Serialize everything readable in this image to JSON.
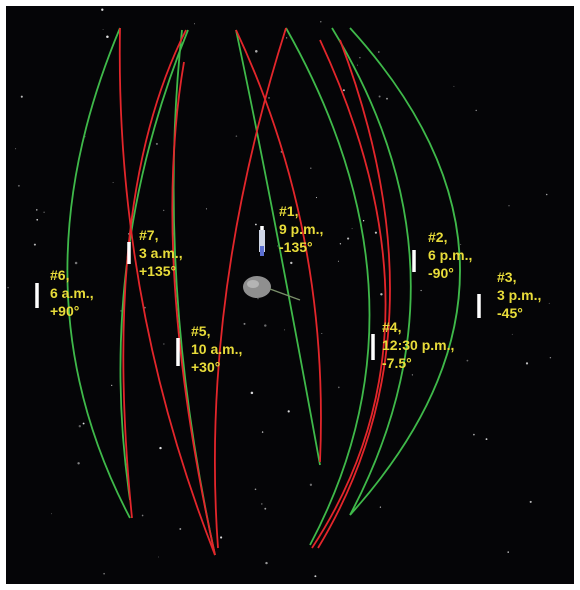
{
  "colors": {
    "background": "#050507",
    "orbit_green": "#3fb94a",
    "orbit_red": "#e3262b",
    "label": "#e8dc3a",
    "marker": "#ffffff",
    "asteroid": "#8f8f8f"
  },
  "icons": [
    "asteroid-icon",
    "spacecraft-icon",
    "star-field"
  ],
  "stations": [
    {
      "id": "1",
      "line1": "#1,",
      "line2": "9 p.m.,",
      "line3": "-135°"
    },
    {
      "id": "2",
      "line1": "#2,",
      "line2": "6 p.m.,",
      "line3": "-90°"
    },
    {
      "id": "3",
      "line1": "#3,",
      "line2": "3 p.m.,",
      "line3": "-45°"
    },
    {
      "id": "4",
      "line1": "#4,",
      "line2": "12:30 p.m.,",
      "line3": "-7.5°"
    },
    {
      "id": "5",
      "line1": "#5,",
      "line2": "10 a.m.,",
      "line3": "+30°"
    },
    {
      "id": "6",
      "line1": "#6,",
      "line2": "6 a.m.,",
      "line3": "+90°"
    },
    {
      "id": "7",
      "line1": "#7,",
      "line2": "3 a.m.,",
      "line3": "+135°"
    }
  ]
}
